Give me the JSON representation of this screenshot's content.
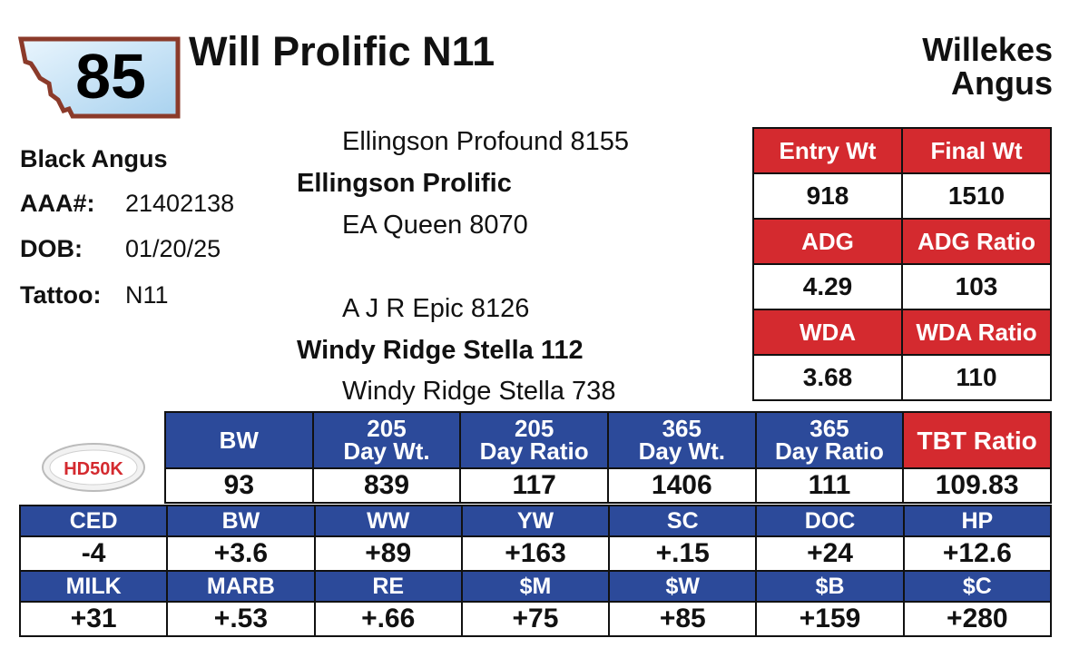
{
  "lot": {
    "number": "85"
  },
  "animal": {
    "name": "Will Prolific N11"
  },
  "breeder": {
    "line1": "Willekes",
    "line2": "Angus"
  },
  "info": {
    "breed": "Black Angus",
    "aaa_label": "AAA#:",
    "aaa_value": "21402138",
    "dob_label": "DOB:",
    "dob_value": "01/20/25",
    "tattoo_label": "Tattoo:",
    "tattoo_value": "N11"
  },
  "pedigree": {
    "sire_sire": "Ellingson Profound 8155",
    "sire": "Ellingson Prolific",
    "sire_dam": "EA Queen 8070",
    "dam_sire": "A J R Epic 8126",
    "dam": "Windy Ridge Stella 112",
    "dam_dam": "Windy Ridge Stella 738"
  },
  "performance": {
    "entry_wt_label": "Entry Wt",
    "final_wt_label": "Final Wt",
    "entry_wt": "918",
    "final_wt": "1510",
    "adg_label": "ADG",
    "adg_ratio_label": "ADG Ratio",
    "adg": "4.29",
    "adg_ratio": "103",
    "wda_label": "WDA",
    "wda_ratio_label": "WDA Ratio",
    "wda": "3.68",
    "wda_ratio": "110"
  },
  "weights": {
    "headers": [
      {
        "line1": "BW",
        "line2": ""
      },
      {
        "line1": "205",
        "line2": "Day Wt."
      },
      {
        "line1": "205",
        "line2": "Day Ratio"
      },
      {
        "line1": "365",
        "line2": "Day Wt."
      },
      {
        "line1": "365",
        "line2": "Day Ratio"
      },
      {
        "line1": "TBT Ratio",
        "line2": ""
      }
    ],
    "values": [
      "93",
      "839",
      "117",
      "1406",
      "111",
      "109.83"
    ]
  },
  "logo": {
    "text": "HD50K"
  },
  "epd": {
    "row1_headers": [
      "CED",
      "BW",
      "WW",
      "YW",
      "SC",
      "DOC",
      "HP"
    ],
    "row1_values": [
      "-4",
      "+3.6",
      "+89",
      "+163",
      "+.15",
      "+24",
      "+12.6"
    ],
    "row2_headers": [
      "MILK",
      "MARB",
      "RE",
      "$M",
      "$W",
      "$B",
      "$C"
    ],
    "row2_values": [
      "+31",
      "+.53",
      "+.66",
      "+75",
      "+85",
      "+159",
      "+280"
    ]
  },
  "colors": {
    "red": "#d42a2f",
    "blue": "#2c4a9a",
    "badge_border": "#8b3a2a",
    "badge_fill": "#cfe6f7"
  }
}
